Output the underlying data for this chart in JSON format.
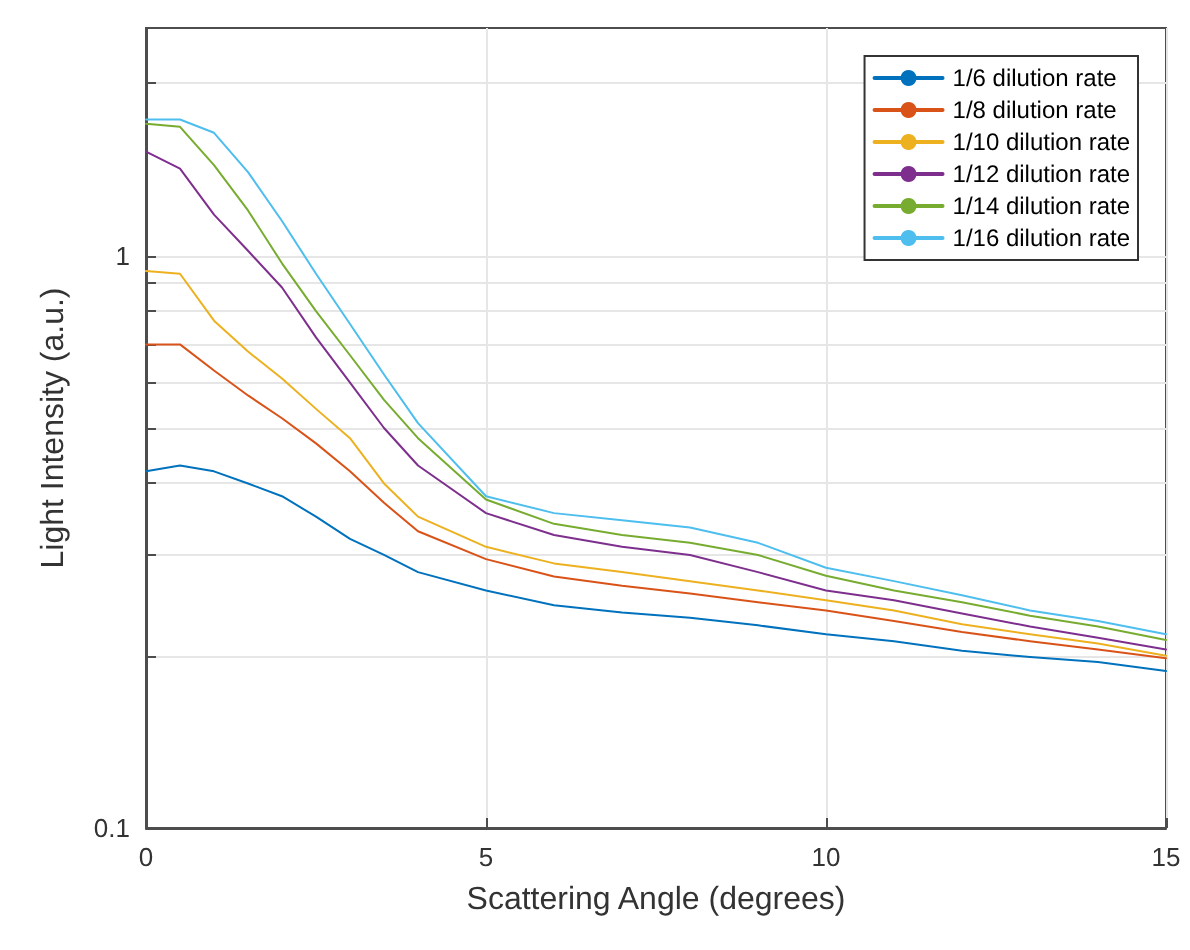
{
  "chart_data": {
    "type": "line",
    "xlabel": "Scattering Angle (degrees)",
    "ylabel": "Light Intensity (a.u.)",
    "x": [
      0,
      0.5,
      1,
      1.5,
      2,
      2.5,
      3,
      3.5,
      4,
      5,
      6,
      7,
      8,
      9,
      10,
      11,
      12,
      13,
      14,
      15
    ],
    "series": [
      {
        "name": "1/6 dilution rate",
        "color": "#0072bd",
        "values": [
          0.42,
          0.43,
          0.42,
          0.4,
          0.38,
          0.35,
          0.32,
          0.3,
          0.28,
          0.26,
          0.245,
          0.238,
          0.233,
          0.226,
          0.218,
          0.212,
          0.204,
          0.199,
          0.195,
          0.188
        ]
      },
      {
        "name": "1/8 dilution rate",
        "color": "#d95319",
        "values": [
          0.7,
          0.7,
          0.63,
          0.57,
          0.52,
          0.47,
          0.42,
          0.37,
          0.33,
          0.295,
          0.275,
          0.265,
          0.257,
          0.248,
          0.24,
          0.23,
          0.22,
          0.212,
          0.205,
          0.198
        ]
      },
      {
        "name": "1/10 dilution rate",
        "color": "#edb120",
        "values": [
          0.94,
          0.93,
          0.77,
          0.68,
          0.61,
          0.54,
          0.48,
          0.4,
          0.35,
          0.31,
          0.29,
          0.28,
          0.27,
          0.26,
          0.25,
          0.24,
          0.227,
          0.218,
          0.21,
          0.2
        ]
      },
      {
        "name": "1/12 dilution rate",
        "color": "#7e2f8e",
        "values": [
          1.52,
          1.42,
          1.18,
          1.02,
          0.88,
          0.72,
          0.6,
          0.5,
          0.43,
          0.355,
          0.325,
          0.31,
          0.3,
          0.28,
          0.26,
          0.25,
          0.237,
          0.225,
          0.215,
          0.205
        ]
      },
      {
        "name": "1/14 dilution rate",
        "color": "#77ac30",
        "values": [
          1.7,
          1.68,
          1.44,
          1.2,
          0.97,
          0.8,
          0.67,
          0.56,
          0.48,
          0.375,
          0.34,
          0.325,
          0.315,
          0.3,
          0.276,
          0.26,
          0.248,
          0.235,
          0.225,
          0.213
        ]
      },
      {
        "name": "1/16 dilution rate",
        "color": "#4dbeee",
        "values": [
          1.73,
          1.73,
          1.64,
          1.4,
          1.15,
          0.93,
          0.76,
          0.62,
          0.51,
          0.38,
          0.355,
          0.345,
          0.335,
          0.315,
          0.285,
          0.27,
          0.255,
          0.24,
          0.23,
          0.218
        ]
      }
    ],
    "xlim": [
      0,
      15
    ],
    "xticks": [
      0,
      5,
      10,
      15
    ],
    "ylim": [
      0.1,
      2.5
    ],
    "log": "y",
    "yticks": [
      0.1,
      {
        "value": 0.2,
        "label": null
      },
      {
        "value": 0.3,
        "label": null
      },
      {
        "value": 0.4,
        "label": null
      },
      {
        "value": 0.5,
        "label": null
      },
      {
        "value": 0.6,
        "label": null
      },
      {
        "value": 0.7,
        "label": null
      },
      {
        "value": 0.8,
        "label": null
      },
      {
        "value": 0.9,
        "label": null
      },
      1,
      {
        "value": 2,
        "label": null
      }
    ],
    "grid": true,
    "legend": "top right",
    "marker": "none",
    "line_style": "solid"
  }
}
